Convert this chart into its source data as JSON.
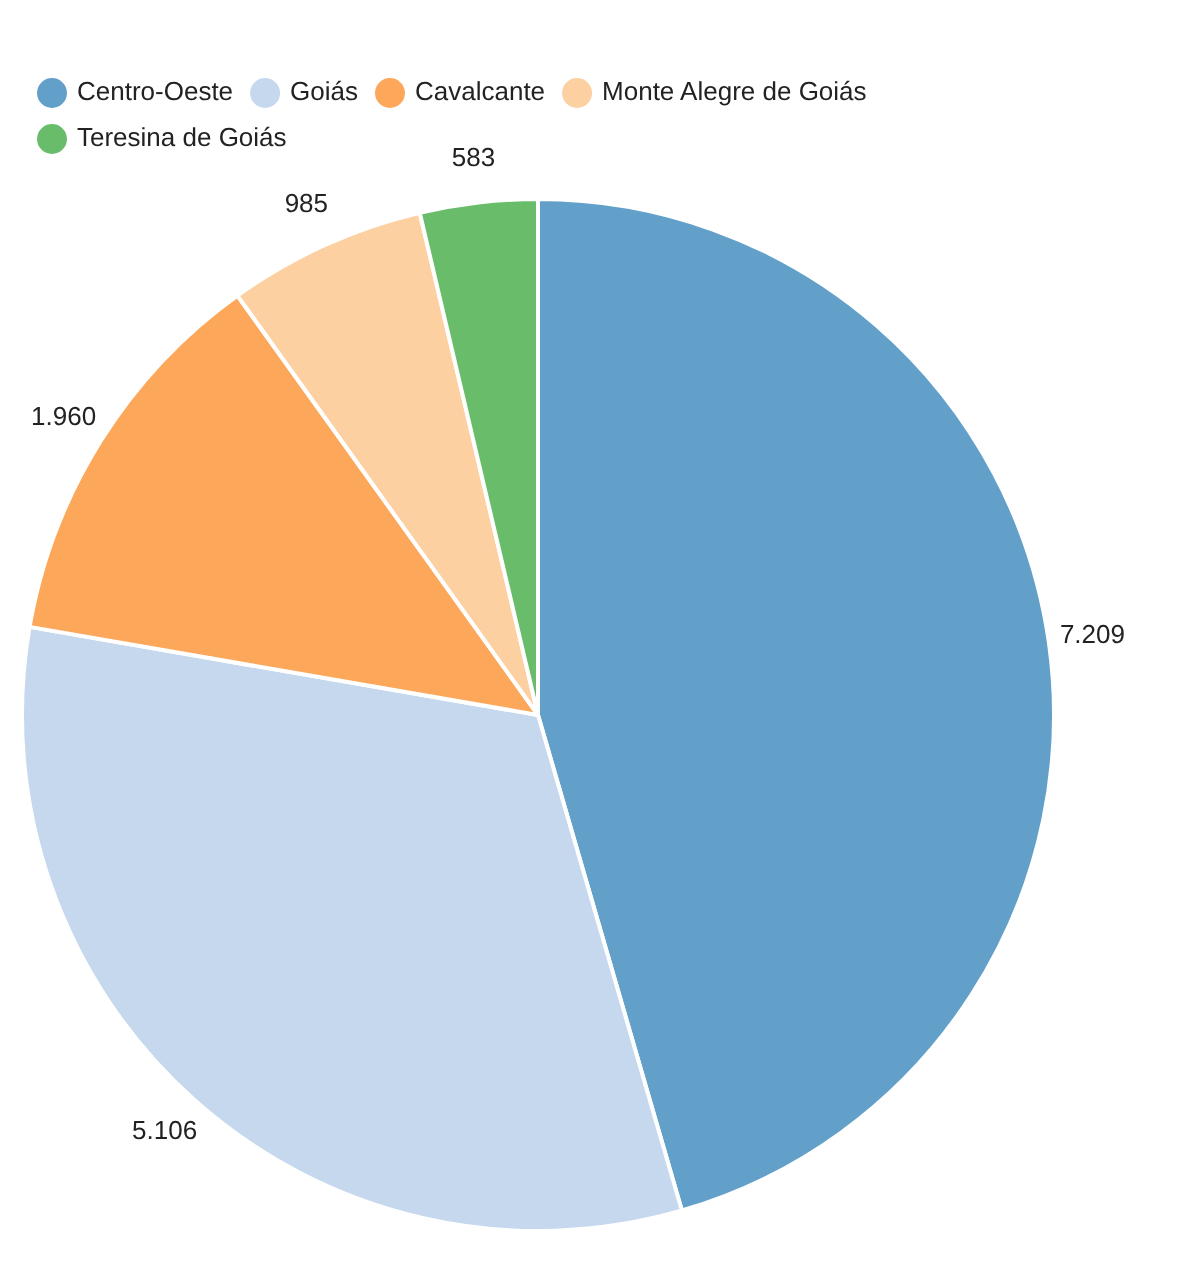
{
  "chart_data": {
    "type": "pie",
    "categories": [
      "Centro-Oeste",
      "Goiás",
      "Cavalcante",
      "Monte Alegre de Goiás",
      "Teresina de Goiás"
    ],
    "values": [
      7209,
      5106,
      1960,
      985,
      583
    ],
    "value_labels": [
      "7.209",
      "5.106",
      "1.960",
      "985",
      "583"
    ],
    "colors": [
      "#62a0ca",
      "#c6d8ee",
      "#fda75a",
      "#fdd0a2",
      "#69bd6a"
    ],
    "legend": "top left"
  }
}
